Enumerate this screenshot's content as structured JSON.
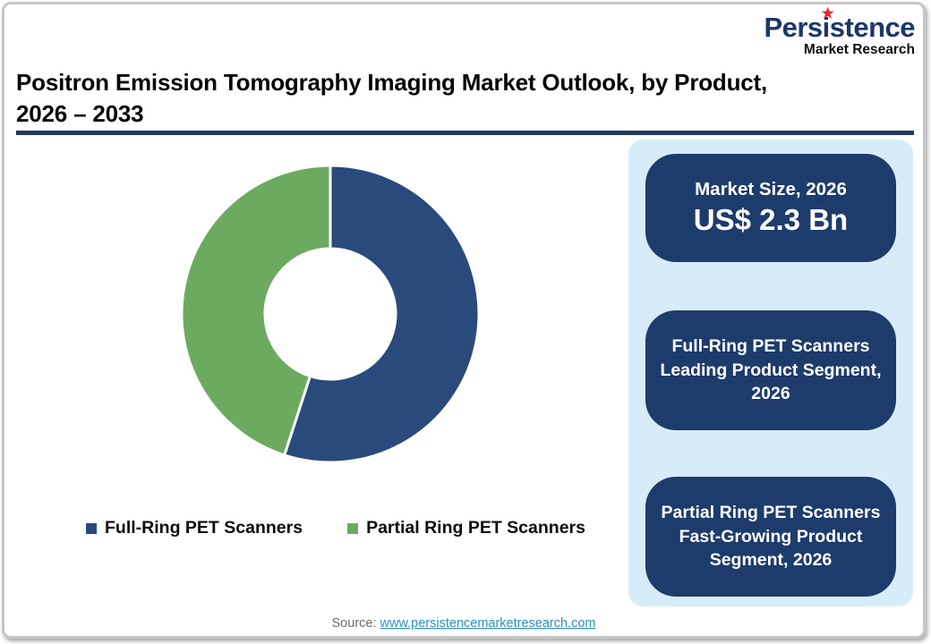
{
  "logo": {
    "wordmark": "Persistence",
    "tagline": "Market Research",
    "star_icon": "★",
    "wordmark_color": "#1C3768",
    "star_color": "#E8232B"
  },
  "header": {
    "title_line1": "Positron Emission Tomography Imaging Market Outlook, by Product,",
    "title_line2": "2026 – 2033",
    "rule_color": "#1F3864"
  },
  "chart_data": {
    "type": "pie",
    "subtype": "donut",
    "labels": [
      "Full-Ring PET Scanners",
      "Partial Ring PET Scanners"
    ],
    "values": [
      55,
      45
    ],
    "values_note": "percent share estimated from arc angles; no data labels shown",
    "colors": [
      "#2A4A7C",
      "#6CAB5F"
    ],
    "start_angle_deg": 0,
    "donut_hole_ratio": 0.44,
    "slice_divider_color": "#FFFFFF",
    "legend_position": "bottom"
  },
  "highlight_panel": {
    "background": "#D7ECF9",
    "box_color": "#1E3C6B",
    "text_color": "#FFFFFF",
    "boxes": [
      {
        "title": "Market Size, 2026",
        "value": "US$ 2.3 Bn"
      },
      {
        "text": "Full-Ring PET Scanners Leading Product Segment, 2026"
      },
      {
        "text": "Partial Ring PET Scanners Fast-Growing Product Segment, 2026"
      }
    ]
  },
  "source": {
    "label": "Source:",
    "link_text": "www.persistencemarketresearch.com",
    "link_color": "#2E8FBE"
  }
}
